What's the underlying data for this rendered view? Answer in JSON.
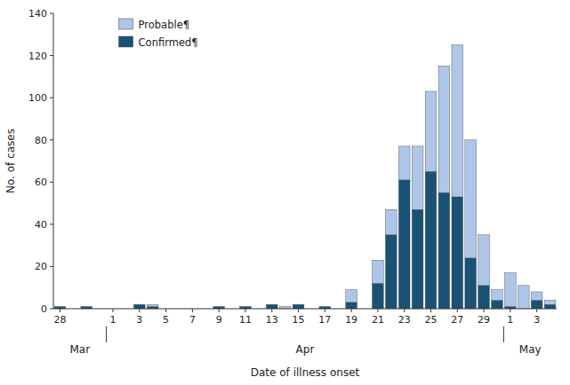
{
  "chart_data": {
    "type": "bar",
    "stacked": true,
    "xlabel": "Date of illness onset",
    "ylabel": "No. of cases",
    "categories": [
      "28",
      null,
      null,
      null,
      "1",
      null,
      "3",
      null,
      "5",
      null,
      "7",
      null,
      "9",
      null,
      "11",
      null,
      "13",
      null,
      "15",
      null,
      "17",
      null,
      "19",
      null,
      "21",
      null,
      "23",
      null,
      "25",
      null,
      "27",
      null,
      "29",
      null,
      "1",
      null,
      "3",
      null
    ],
    "series": [
      {
        "name": "Confirmed¶",
        "color": "#1a5276",
        "values": [
          1,
          0,
          1,
          0,
          0,
          0,
          2,
          1,
          0,
          0,
          0,
          0,
          1,
          0,
          1,
          0,
          2,
          0,
          2,
          0,
          1,
          0,
          3,
          0,
          12,
          35,
          61,
          47,
          65,
          55,
          53,
          24,
          11,
          4,
          1,
          0,
          4,
          2
        ]
      },
      {
        "name": "Probable¶",
        "color": "#aec6e8",
        "values": [
          0,
          0,
          0,
          0,
          0,
          0,
          0,
          1,
          0,
          0,
          0,
          0,
          0,
          0,
          0,
          0,
          0,
          1,
          0,
          0,
          0,
          0,
          6,
          0,
          11,
          12,
          16,
          30,
          38,
          60,
          72,
          56,
          24,
          5,
          16,
          11,
          4,
          2
        ]
      }
    ],
    "annotations": [
      "Mar",
      "Apr",
      "May"
    ],
    "ylim": [
      0,
      140
    ],
    "yticks": [
      0,
      20,
      40,
      60,
      80,
      100,
      120,
      140
    ],
    "legend": "upper left",
    "grid": false
  }
}
